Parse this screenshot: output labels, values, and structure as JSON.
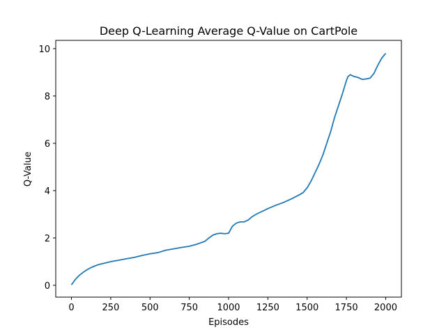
{
  "chart_data": {
    "type": "line",
    "title": "Deep Q-Learning Average Q-Value on CartPole",
    "xlabel": "Episodes",
    "ylabel": "Q-Value",
    "xlim": [
      -100,
      2100
    ],
    "ylim": [
      -0.5,
      10.35
    ],
    "xticks": [
      0,
      250,
      500,
      750,
      1000,
      1250,
      1500,
      1750,
      2000
    ],
    "yticks": [
      0,
      2,
      4,
      6,
      8,
      10
    ],
    "grid": false,
    "series": [
      {
        "color": "#1f77b4",
        "x": [
          0,
          25,
          50,
          75,
          100,
          125,
          150,
          175,
          200,
          250,
          300,
          350,
          400,
          450,
          500,
          550,
          600,
          650,
          700,
          750,
          800,
          850,
          875,
          900,
          925,
          950,
          975,
          1000,
          1025,
          1050,
          1075,
          1100,
          1125,
          1150,
          1175,
          1200,
          1250,
          1300,
          1350,
          1400,
          1450,
          1475,
          1500,
          1525,
          1550,
          1575,
          1600,
          1625,
          1650,
          1675,
          1700,
          1725,
          1750,
          1760,
          1775,
          1790,
          1800,
          1825,
          1850,
          1875,
          1900,
          1925,
          1950,
          1975,
          2000
        ],
        "y": [
          0.02,
          0.25,
          0.42,
          0.55,
          0.66,
          0.75,
          0.82,
          0.88,
          0.92,
          1.0,
          1.06,
          1.12,
          1.18,
          1.26,
          1.33,
          1.38,
          1.48,
          1.54,
          1.6,
          1.65,
          1.74,
          1.86,
          2.0,
          2.12,
          2.18,
          2.2,
          2.18,
          2.2,
          2.5,
          2.63,
          2.68,
          2.68,
          2.76,
          2.9,
          3.0,
          3.08,
          3.24,
          3.38,
          3.5,
          3.65,
          3.82,
          3.92,
          4.12,
          4.4,
          4.75,
          5.1,
          5.5,
          6.0,
          6.5,
          7.1,
          7.6,
          8.1,
          8.65,
          8.82,
          8.9,
          8.85,
          8.82,
          8.78,
          8.7,
          8.72,
          8.75,
          8.95,
          9.3,
          9.6,
          9.8
        ]
      }
    ]
  }
}
